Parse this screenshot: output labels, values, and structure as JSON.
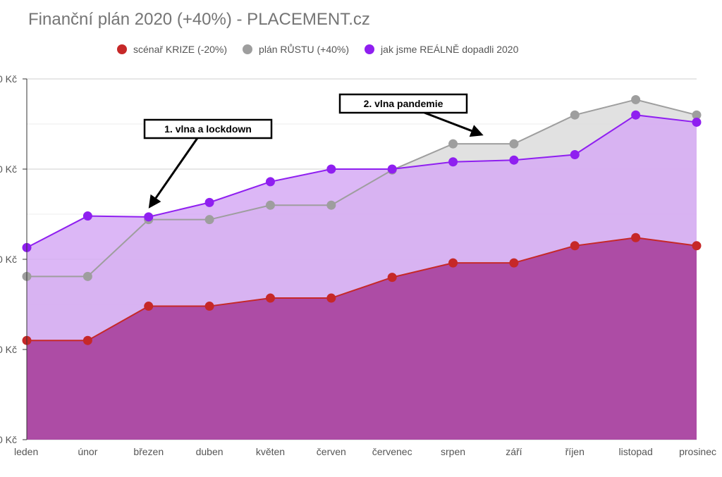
{
  "chart_data": {
    "type": "area",
    "title": "Finanční plán 2020 (+40%) - PLACEMENT.cz",
    "categories": [
      "leden",
      "únor",
      "březen",
      "duben",
      "květen",
      "červen",
      "červenec",
      "srpen",
      "září",
      "říjen",
      "listopad",
      "prosinec"
    ],
    "y_tick_labels": [
      "0 Kč",
      "0 Kč",
      "0 Kč",
      "0 Kč",
      "0 Kč"
    ],
    "ylim": [
      0,
      4
    ],
    "grid": true,
    "legend_position": "top",
    "series": [
      {
        "name": "scénař KRIZE (-20%)",
        "color": "#c62828",
        "fill": "#ab47a0",
        "values": [
          1.1,
          1.1,
          1.48,
          1.48,
          1.57,
          1.57,
          1.8,
          1.96,
          1.96,
          2.15,
          2.24,
          2.15
        ]
      },
      {
        "name": "plán RŮSTU (+40%)",
        "color": "#9e9e9e",
        "fill": "#dcdcdc",
        "values": [
          1.81,
          1.81,
          2.44,
          2.44,
          2.6,
          2.6,
          2.99,
          3.28,
          3.28,
          3.6,
          3.77,
          3.6
        ]
      },
      {
        "name": "jak jsme REÁLNĚ dopadli  2020",
        "color": "#8f1ff0",
        "fill": "#d6aaf5",
        "values": [
          2.13,
          2.48,
          2.47,
          2.63,
          2.86,
          3.0,
          3.0,
          3.08,
          3.1,
          3.16,
          3.6,
          3.52
        ]
      }
    ],
    "annotations": [
      {
        "label": "1. vlna a lockdown",
        "target_index": 2,
        "target_series": 2
      },
      {
        "label": "2. vlna pandemie",
        "target_index": 7.5,
        "target_series": 1
      }
    ]
  }
}
